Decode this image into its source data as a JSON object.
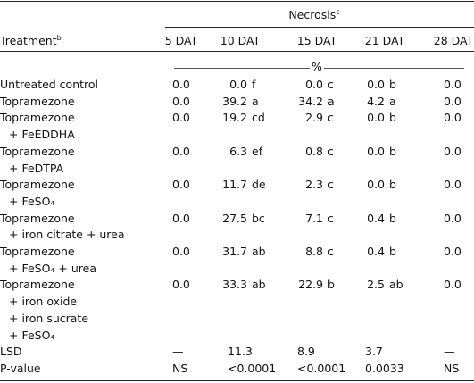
{
  "header": {
    "group": "Necrosis",
    "group_note": "c",
    "treatment": "Treatment",
    "treatment_note": "b",
    "columns": [
      "5 DAT",
      "10 DAT",
      "15 DAT",
      "21 DAT",
      "28 DAT"
    ],
    "unit": "%"
  },
  "rows": [
    {
      "treatment": [
        "Untreated control"
      ],
      "cells": [
        {
          "n": "0.0"
        },
        {
          "n": "0.0",
          "s": "f"
        },
        {
          "n": "0.0",
          "s": "c"
        },
        {
          "n": "0.0",
          "s": "b"
        },
        {
          "n": "0.0"
        }
      ]
    },
    {
      "treatment": [
        "Topramezone"
      ],
      "cells": [
        {
          "n": "0.0"
        },
        {
          "n": "39.2",
          "s": "a"
        },
        {
          "n": "34.2",
          "s": "a"
        },
        {
          "n": "4.2",
          "s": "a"
        },
        {
          "n": "0.0"
        }
      ]
    },
    {
      "treatment": [
        "Topramezone",
        "+ FeEDDHA"
      ],
      "cells": [
        {
          "n": "0.0"
        },
        {
          "n": "19.2",
          "s": "cd"
        },
        {
          "n": "2.9",
          "s": "c"
        },
        {
          "n": "0.0",
          "s": "b"
        },
        {
          "n": "0.0"
        }
      ]
    },
    {
      "treatment": [
        "Topramezone",
        "+ FeDTPA"
      ],
      "cells": [
        {
          "n": "0.0"
        },
        {
          "n": "6.3",
          "s": "ef"
        },
        {
          "n": "0.8",
          "s": "c"
        },
        {
          "n": "0.0",
          "s": "b"
        },
        {
          "n": "0.0"
        }
      ]
    },
    {
      "treatment": [
        "Topramezone",
        "+ FeSO₄"
      ],
      "cells": [
        {
          "n": "0.0"
        },
        {
          "n": "11.7",
          "s": "de"
        },
        {
          "n": "2.3",
          "s": "c"
        },
        {
          "n": "0.0",
          "s": "b"
        },
        {
          "n": "0.0"
        }
      ]
    },
    {
      "treatment": [
        "Topramezone",
        "+ iron citrate + urea"
      ],
      "cells": [
        {
          "n": "0.0"
        },
        {
          "n": "27.5",
          "s": "bc"
        },
        {
          "n": "7.1",
          "s": "c"
        },
        {
          "n": "0.4",
          "s": "b"
        },
        {
          "n": "0.0"
        }
      ]
    },
    {
      "treatment": [
        "Topramezone",
        "+ FeSO₄ + urea"
      ],
      "cells": [
        {
          "n": "0.0"
        },
        {
          "n": "31.7",
          "s": "ab"
        },
        {
          "n": "8.8",
          "s": "c"
        },
        {
          "n": "0.4",
          "s": "b"
        },
        {
          "n": "0.0"
        }
      ]
    },
    {
      "treatment": [
        "Topramezone",
        "+ iron oxide",
        "+ iron sucrate",
        "+ FeSO₄"
      ],
      "cells": [
        {
          "n": "0.0"
        },
        {
          "n": "33.3",
          "s": "ab"
        },
        {
          "n": "22.9",
          "s": "b"
        },
        {
          "n": "2.5",
          "s": "ab"
        },
        {
          "n": "0.0"
        }
      ]
    }
  ],
  "stats": [
    {
      "label": "LSD",
      "cells": [
        "—",
        "11.3",
        "8.9",
        "3.7",
        "—"
      ]
    },
    {
      "label": "P-value",
      "cells": [
        "NS",
        "<0.0001",
        "<0.0001",
        "0.0033",
        "NS"
      ]
    }
  ]
}
